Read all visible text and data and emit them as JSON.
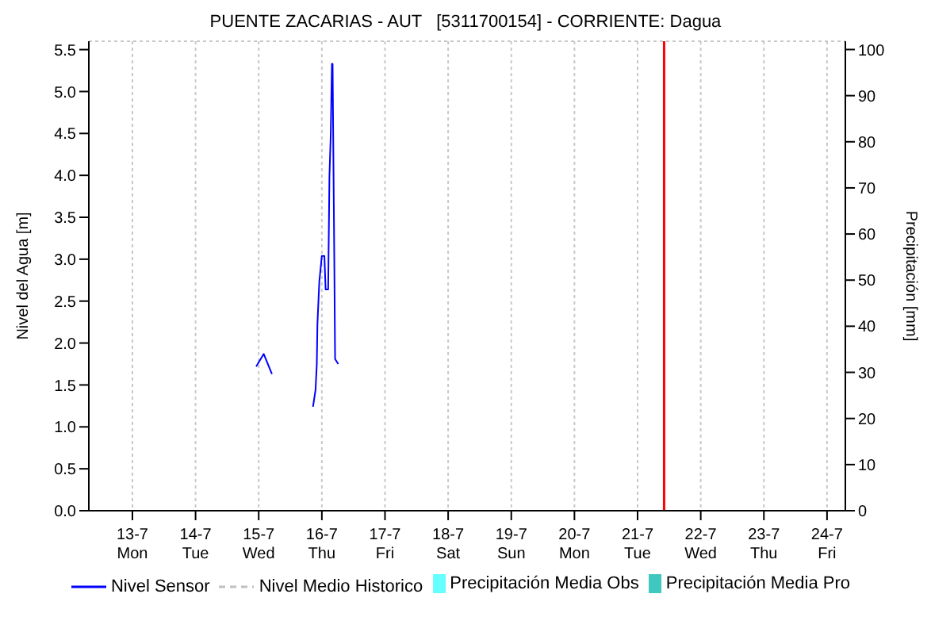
{
  "chart_data": {
    "type": "line",
    "title": "PUENTE ZACARIAS - AUT   [5311700154] - CORRIENTE: Dagua",
    "ylabel": "Nivel del Agua [m]",
    "y2label": "Precipitación [mm]",
    "x": [
      "--07-14T23:02",
      "--07-15T01:55",
      "--07-15T05:02",
      "--07-15T12:00",
      "--07-15T20:38",
      "--07-15T21:36",
      "--07-15T22:05",
      "--07-15T22:19",
      "--07-15T23:02",
      "--07-16T00:00",
      "--07-16T00:58",
      "--07-16T01:26",
      "--07-16T02:24",
      "--07-16T02:53",
      "--07-16T03:22",
      "--07-16T03:50",
      "--07-16T04:05",
      "--07-16T04:48",
      "--07-16T05:02",
      "--07-16T06:14"
    ],
    "series": [
      {
        "name": "Nivel Sensor",
        "color": "#0000ff",
        "values": [
          1.72,
          1.87,
          1.63,
          null,
          1.24,
          1.44,
          1.75,
          2.22,
          2.73,
          3.04,
          3.04,
          2.64,
          2.64,
          3.99,
          4.47,
          5.33,
          5.33,
          2.73,
          1.81,
          1.75
        ]
      },
      {
        "name": "Nivel Medio Historico",
        "type": "line",
        "line_style": "dashed",
        "color": "#c0c0c0",
        "values": [
          null,
          null,
          null,
          null,
          null,
          null,
          null,
          null,
          null,
          null,
          null,
          null,
          null,
          null,
          null,
          null,
          null,
          null,
          null,
          null
        ]
      },
      {
        "name": "Precipitación Media Obs",
        "type": "bar",
        "color": "#66ffff",
        "values": [
          null,
          null,
          null,
          null,
          null,
          null,
          null,
          null,
          null,
          null,
          null,
          null,
          null,
          null,
          null,
          null,
          null,
          null,
          null,
          null
        ]
      },
      {
        "name": "Precipitación Media Pro",
        "type": "bar",
        "color": "#40c8c0",
        "values": [
          null,
          null,
          null,
          null,
          null,
          null,
          null,
          null,
          null,
          null,
          null,
          null,
          null,
          null,
          null,
          null,
          null,
          null,
          null,
          null
        ]
      }
    ],
    "xlim": [
      "--07-12T07:26",
      "--07-24T06:58"
    ],
    "xticks": [
      {
        "value": "--07-13",
        "label": "13-7\nMon"
      },
      {
        "value": "--07-14",
        "label": "14-7\nTue"
      },
      {
        "value": "--07-15",
        "label": "15-7\nWed"
      },
      {
        "value": "--07-16",
        "label": "16-7\nThu"
      },
      {
        "value": "--07-17",
        "label": "17-7\nFri"
      },
      {
        "value": "--07-18",
        "label": "18-7\nSat"
      },
      {
        "value": "--07-19",
        "label": "19-7\nSun"
      },
      {
        "value": "--07-20",
        "label": "20-7\nMon"
      },
      {
        "value": "--07-21",
        "label": "21-7\nTue"
      },
      {
        "value": "--07-22",
        "label": "22-7\nWed"
      },
      {
        "value": "--07-23",
        "label": "23-7\nThu"
      },
      {
        "value": "--07-24",
        "label": "24-7\nFri"
      }
    ],
    "ylim": [
      0,
      5.6
    ],
    "yticks": [
      {
        "value": 0,
        "label": "0.0"
      },
      {
        "value": 0.5,
        "label": "0.5"
      },
      {
        "value": 1,
        "label": "1.0"
      },
      {
        "value": 1.5,
        "label": "1.5"
      },
      {
        "value": 2,
        "label": "2.0"
      },
      {
        "value": 2.5,
        "label": "2.5"
      },
      {
        "value": 3,
        "label": "3.0"
      },
      {
        "value": 3.5,
        "label": "3.5"
      },
      {
        "value": 4,
        "label": "4.0"
      },
      {
        "value": 4.5,
        "label": "4.5"
      },
      {
        "value": 5,
        "label": "5.0"
      },
      {
        "value": 5.5,
        "label": "5.5"
      }
    ],
    "y2lim": [
      0,
      101.8
    ],
    "y2ticks": [
      0,
      10,
      20,
      30,
      40,
      50,
      60,
      70,
      80,
      90,
      100
    ],
    "ref_lines": [
      {
        "axis": "x",
        "value": "--07-21T10:05",
        "color": "#ff0000"
      }
    ],
    "grid": true,
    "legend": "bottom",
    "marker": "none",
    "line_style": "solid"
  }
}
